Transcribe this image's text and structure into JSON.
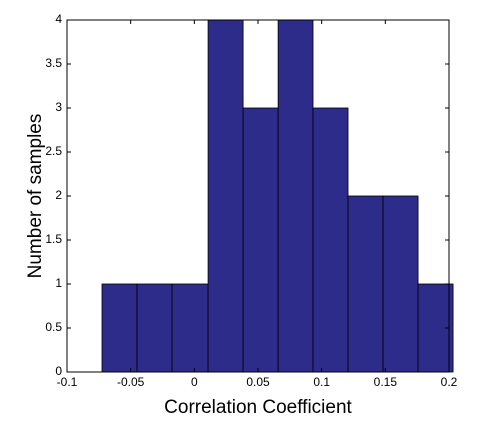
{
  "chart_data": {
    "type": "histogram",
    "xlabel": "Correlation Coefficient",
    "ylabel": "Number of samples",
    "bins": [
      -0.0725,
      -0.045,
      -0.0175,
      0.0108,
      0.0383,
      0.0658,
      0.0932,
      0.1207,
      0.1482,
      0.1757,
      0.2032
    ],
    "values": [
      1,
      1,
      1,
      4,
      3,
      4,
      3,
      2,
      2,
      1
    ],
    "color": "#2e2c8a",
    "xlim": [
      -0.1,
      0.2
    ],
    "xticks": [
      -0.1,
      -0.05,
      0,
      0.05,
      0.1,
      0.15,
      0.2
    ],
    "ylim": [
      0,
      4
    ],
    "yticks": [
      0,
      0.5,
      1,
      1.5,
      2,
      2.5,
      3,
      3.5,
      4
    ],
    "grid": false
  }
}
